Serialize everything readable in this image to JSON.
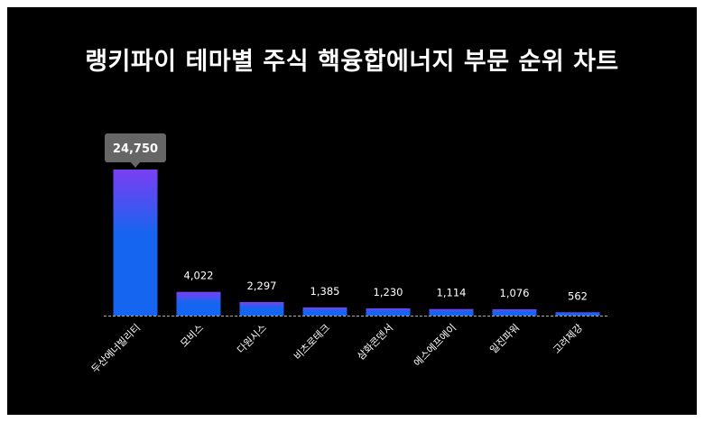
{
  "title": "랭키파이 테마별 주식 핵융합에너지 부문 순위 차트",
  "colors": {
    "background": "#000000",
    "bar_top": "#7b3ff2",
    "bar_bottom": "#1565f0",
    "baseline": "#aaaaaa",
    "tooltip": "#666666"
  },
  "chart_data": {
    "type": "bar",
    "title": "랭키파이 테마별 주식 핵융합에너지 부문 순위 차트",
    "categories": [
      "두산에너빌리티",
      "모비스",
      "다원시스",
      "비츠로테크",
      "삼화콘덴서",
      "에스에프에이",
      "일진파워",
      "고려제강"
    ],
    "values": [
      24750,
      4022,
      2297,
      1385,
      1230,
      1114,
      1076,
      562
    ],
    "value_labels": [
      "24,750",
      "4,022",
      "2,297",
      "1,385",
      "1,230",
      "1,114",
      "1,076",
      "562"
    ],
    "highlight_index": 0,
    "ylim": [
      0,
      24750
    ],
    "grid": false,
    "xlabel": "",
    "ylabel": ""
  }
}
